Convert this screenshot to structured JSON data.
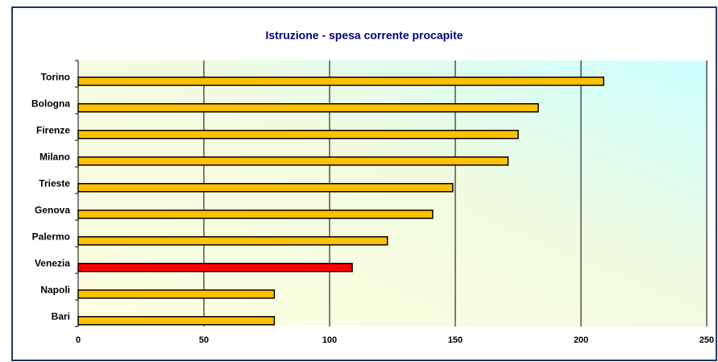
{
  "chart_data": {
    "type": "bar",
    "orientation": "horizontal",
    "title": "Istruzione - spesa corrente procapite",
    "categories": [
      "Torino",
      "Bologna",
      "Firenze",
      "Milano",
      "Trieste",
      "Genova",
      "Palermo",
      "Venezia",
      "Napoli",
      "Bari"
    ],
    "values": [
      209,
      183,
      175,
      171,
      149,
      141,
      123,
      109,
      78,
      78
    ],
    "colors": [
      "#ffc000",
      "#ffc000",
      "#ffc000",
      "#ffc000",
      "#ffc000",
      "#ffc000",
      "#ffc000",
      "#ff0000",
      "#ffc000",
      "#ffc000"
    ],
    "xlim": [
      0,
      250
    ],
    "xticks": [
      0,
      50,
      100,
      150,
      200,
      250
    ],
    "grid": true
  }
}
